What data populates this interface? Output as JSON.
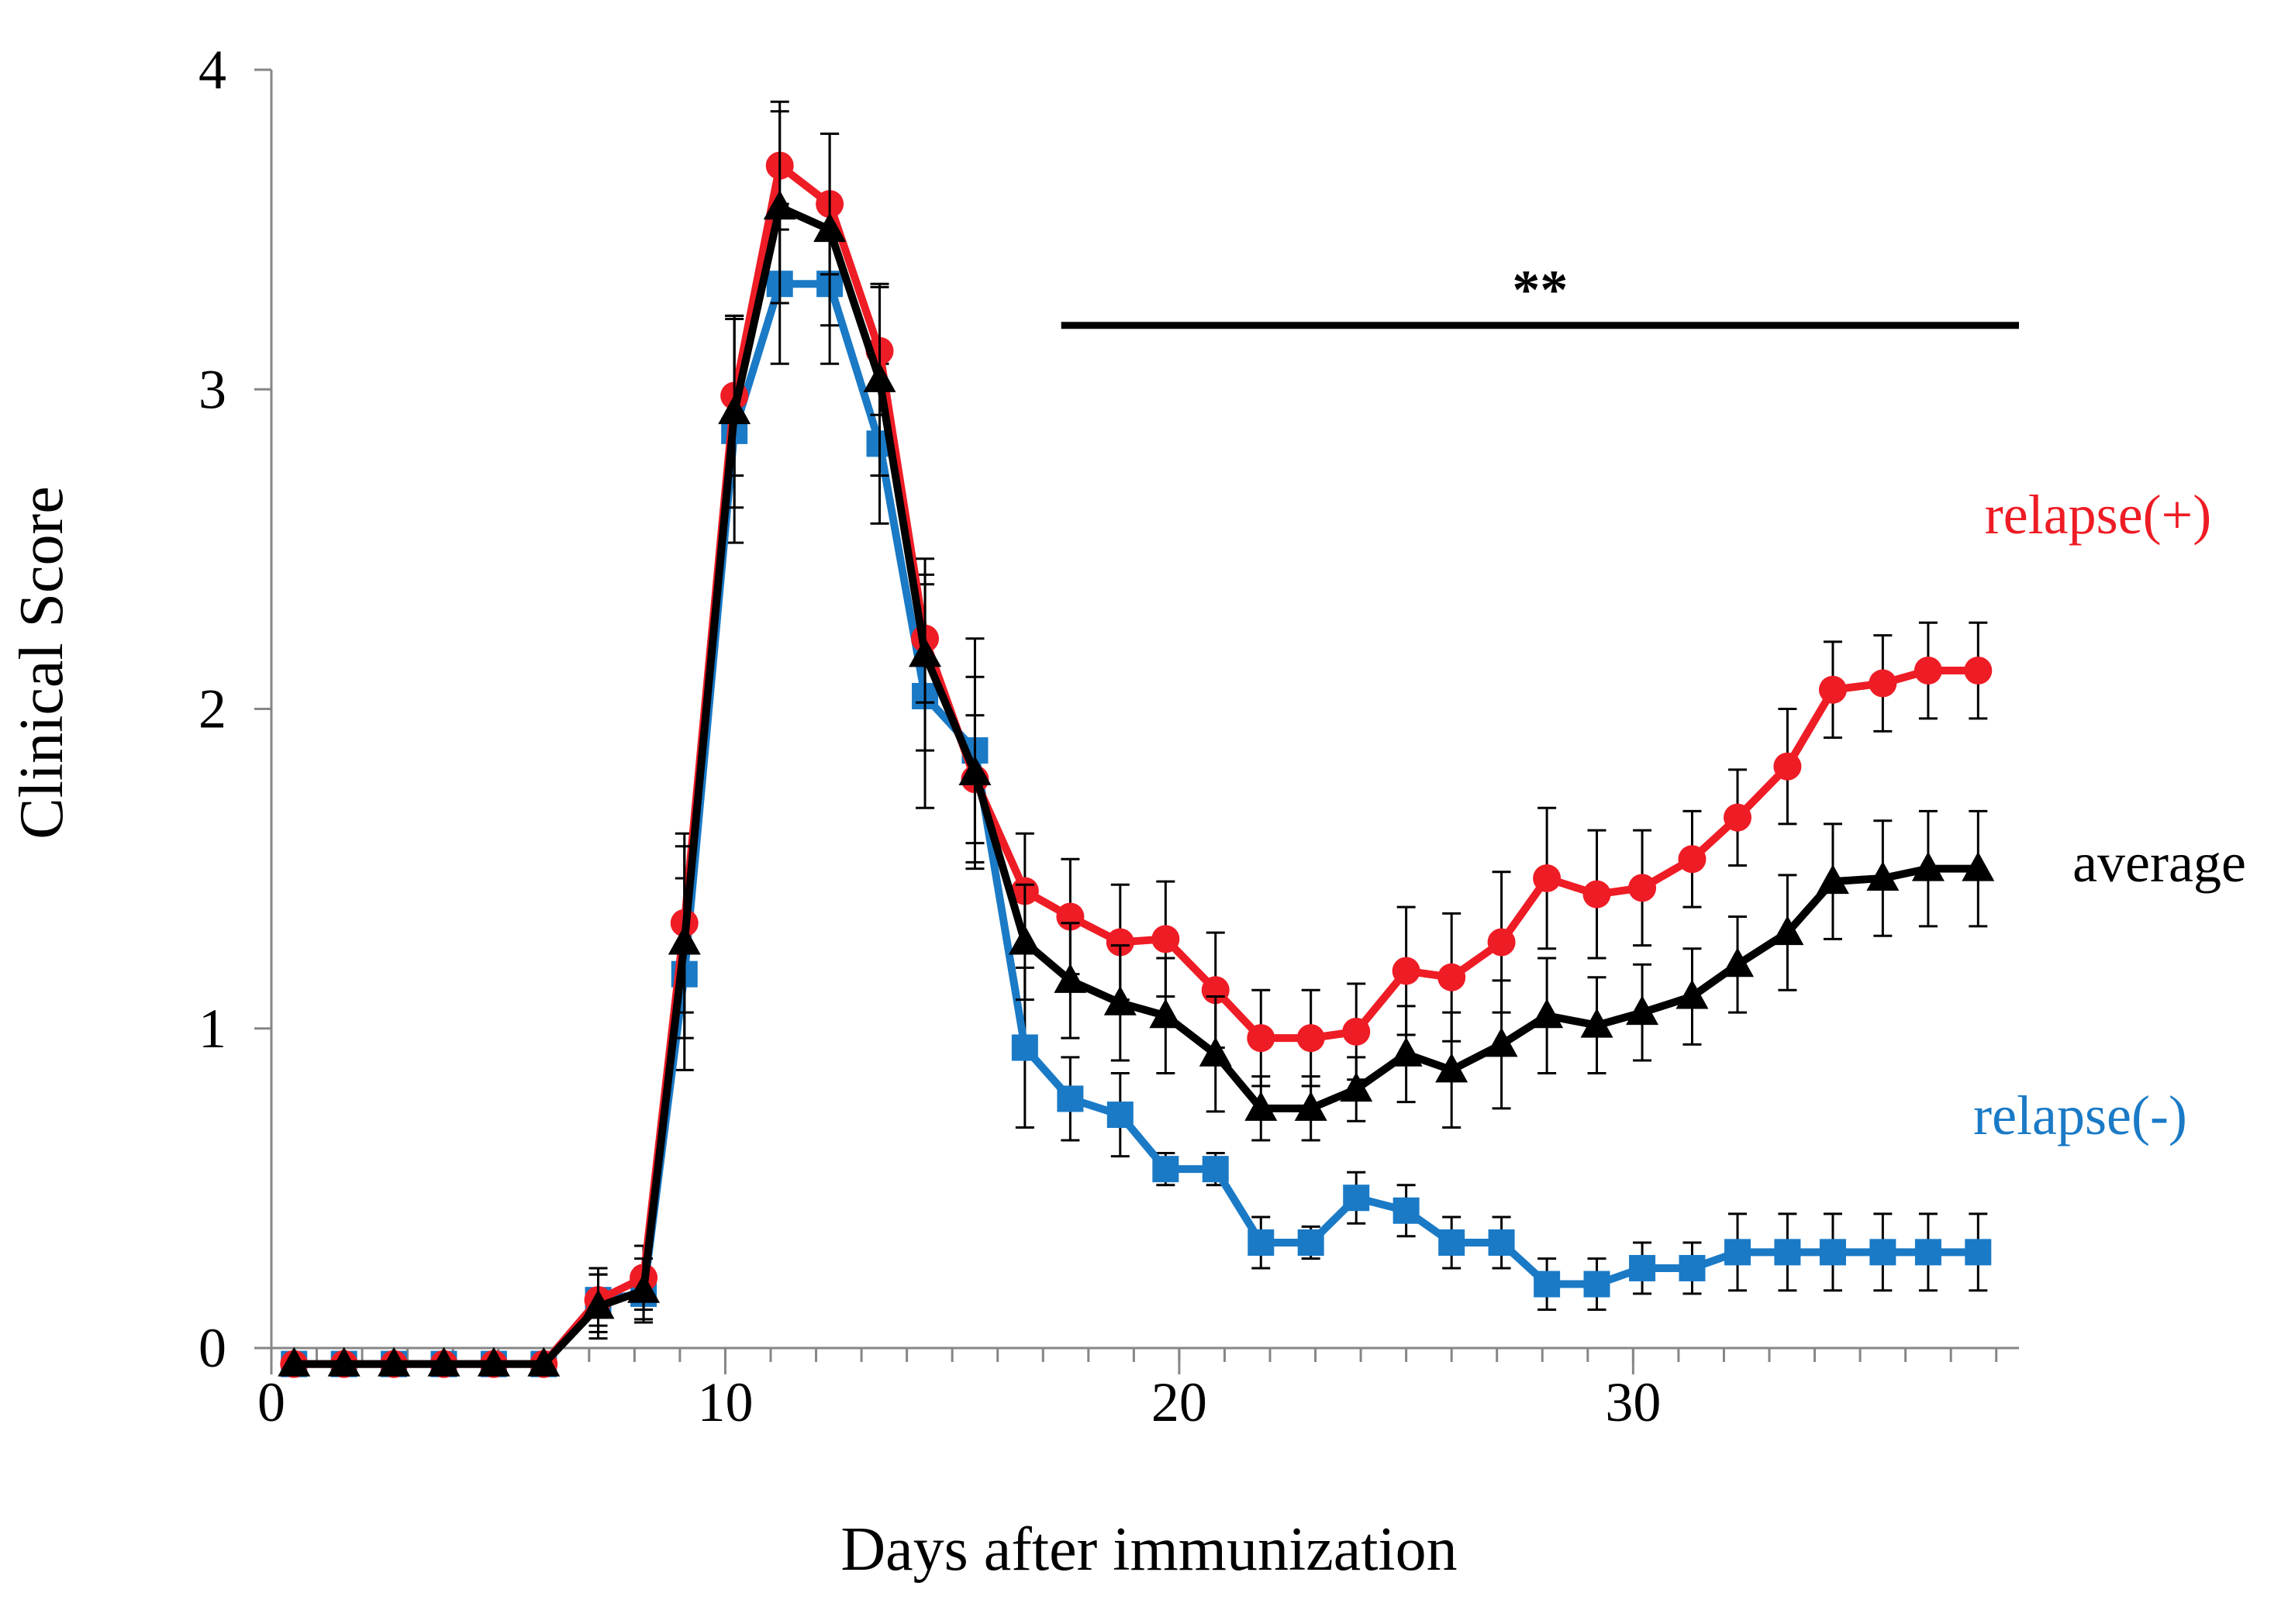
{
  "chart_data": {
    "type": "line",
    "title": "",
    "xlabel": "Days after immunization",
    "ylabel": "Clinical Score",
    "xlim": [
      0,
      38.5
    ],
    "ylim": [
      0,
      4
    ],
    "xticks": [
      0,
      10,
      20,
      30
    ],
    "yticks": [
      0,
      1,
      2,
      3,
      4
    ],
    "grid": false,
    "x": [
      0.5,
      1.6,
      2.7,
      3.8,
      4.9,
      6,
      7.2,
      8.2,
      9.1,
      10.2,
      11.2,
      12.3,
      13.4,
      14.4,
      15.5,
      16.6,
      17.6,
      18.7,
      19.7,
      20.8,
      21.8,
      22.9,
      23.9,
      25,
      26,
      27.1,
      28.1,
      29.2,
      30.2,
      31.3,
      32.3,
      33.4,
      34.4,
      35.5,
      36.5,
      37.6
    ],
    "series": [
      {
        "name": "relapse(+)",
        "color": "#ee1c25",
        "marker": "circle",
        "values": [
          -0.05,
          -0.05,
          -0.05,
          -0.05,
          -0.05,
          -0.05,
          0.15,
          0.22,
          1.33,
          2.98,
          3.7,
          3.58,
          3.12,
          2.22,
          1.78,
          1.43,
          1.35,
          1.27,
          1.28,
          1.12,
          0.97,
          0.97,
          0.99,
          1.18,
          1.16,
          1.27,
          1.47,
          1.42,
          1.44,
          1.53,
          1.66,
          1.82,
          2.06,
          2.08,
          2.12,
          2.12
        ],
        "errors": [
          0,
          0,
          0,
          0,
          0,
          0,
          0.1,
          0.1,
          0.28,
          0.25,
          0.2,
          0.22,
          0.2,
          0.2,
          0.2,
          0.18,
          0.18,
          0.18,
          0.18,
          0.18,
          0.15,
          0.15,
          0.15,
          0.2,
          0.2,
          0.22,
          0.22,
          0.2,
          0.18,
          0.15,
          0.15,
          0.18,
          0.15,
          0.15,
          0.15,
          0.15
        ]
      },
      {
        "name": "average",
        "color": "#000000",
        "marker": "triangle",
        "values": [
          -0.05,
          -0.05,
          -0.05,
          -0.05,
          -0.05,
          -0.05,
          0.13,
          0.18,
          1.27,
          2.93,
          3.57,
          3.5,
          3.03,
          2.17,
          1.8,
          1.27,
          1.15,
          1.08,
          1.04,
          0.92,
          0.75,
          0.75,
          0.81,
          0.92,
          0.87,
          0.95,
          1.04,
          1.01,
          1.05,
          1.1,
          1.2,
          1.3,
          1.46,
          1.47,
          1.5,
          1.5
        ],
        "errors": [
          0,
          0,
          0,
          0,
          0,
          0,
          0.1,
          0.1,
          0.3,
          0.3,
          0.3,
          0.3,
          0.3,
          0.3,
          0.3,
          0.18,
          0.18,
          0.18,
          0.18,
          0.18,
          0.1,
          0.1,
          0.1,
          0.15,
          0.18,
          0.2,
          0.18,
          0.15,
          0.15,
          0.15,
          0.15,
          0.18,
          0.18,
          0.18,
          0.18,
          0.18
        ]
      },
      {
        "name": "relapse(-)",
        "color": "#1a7ac6",
        "marker": "square",
        "values": [
          -0.05,
          -0.05,
          -0.05,
          -0.05,
          -0.05,
          -0.05,
          0.15,
          0.17,
          1.17,
          2.87,
          3.33,
          3.33,
          2.83,
          2.04,
          1.87,
          0.94,
          0.78,
          0.73,
          0.56,
          0.56,
          0.33,
          0.33,
          0.47,
          0.43,
          0.33,
          0.33,
          0.2,
          0.2,
          0.25,
          0.25,
          0.3,
          0.3,
          0.3,
          0.3,
          0.3,
          0.3
        ],
        "errors": [
          0,
          0,
          0,
          0,
          0,
          0,
          0.08,
          0.08,
          0.3,
          0.35,
          0.25,
          0.25,
          0.25,
          0.35,
          0.35,
          0.25,
          0.13,
          0.13,
          0.05,
          0.05,
          0.08,
          0.05,
          0.08,
          0.08,
          0.08,
          0.08,
          0.08,
          0.08,
          0.08,
          0.08,
          0.12,
          0.12,
          0.12,
          0.12,
          0.12,
          0.12
        ]
      }
    ],
    "significance": {
      "label": "**",
      "x_start": 17.4,
      "x_end": 38.5,
      "y": 3.2
    },
    "annotations": [
      {
        "text": "relapse(+)",
        "series": 0,
        "color": "#ee1c25"
      },
      {
        "text": "average",
        "series": 1,
        "color": "#000000"
      },
      {
        "text": "relapse(-)",
        "series": 2,
        "color": "#1a7ac6"
      }
    ]
  }
}
